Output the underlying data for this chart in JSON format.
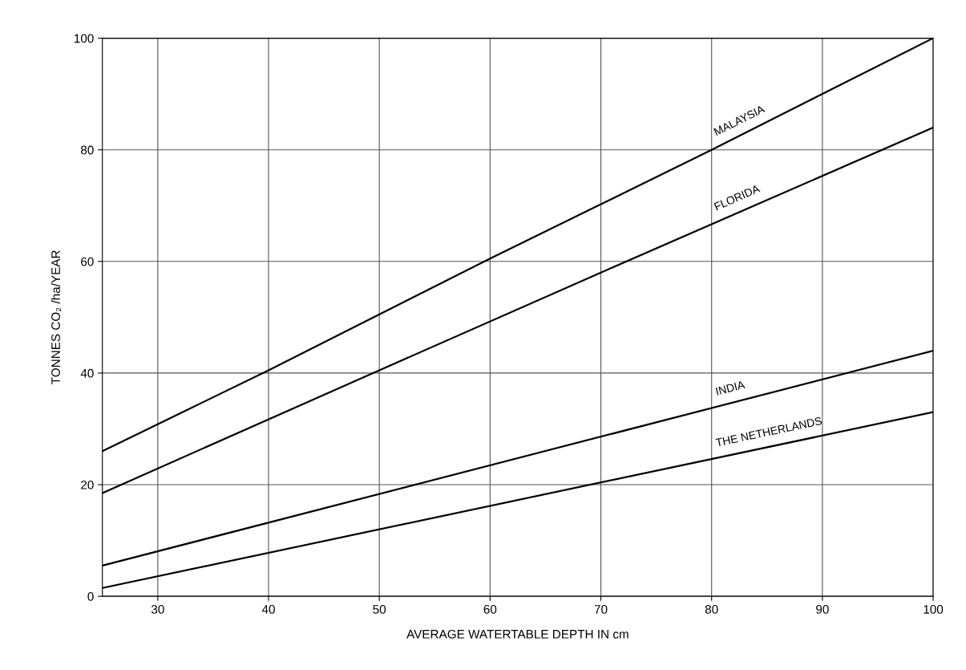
{
  "chart_data": {
    "type": "line",
    "xlabel": "AVERAGE WATERTABLE DEPTH IN cm",
    "ylabel": "TONNES CO₂ /ha/YEAR",
    "xlim": [
      25,
      100
    ],
    "xticks": [
      30,
      40,
      50,
      60,
      70,
      80,
      90,
      100
    ],
    "ylim": [
      0,
      100
    ],
    "yticks": [
      0,
      20,
      40,
      60,
      80,
      100
    ],
    "grid": true,
    "legend": false,
    "marker": "none",
    "line_style": "solid",
    "series": [
      {
        "name": "MALAYSIA",
        "color": "#000000",
        "x": [
          25,
          40,
          60,
          80,
          100
        ],
        "values": [
          26,
          40.5,
          60.5,
          80,
          100
        ]
      },
      {
        "name": "FLORIDA",
        "color": "#000000",
        "x": [
          25,
          50,
          70,
          100
        ],
        "values": [
          18.5,
          40.5,
          58,
          84
        ]
      },
      {
        "name": "INDIA",
        "color": "#000000",
        "x": [
          25,
          100
        ],
        "values": [
          5.5,
          44
        ]
      },
      {
        "name": "THE NETHERLANDS",
        "color": "#000000",
        "x": [
          25,
          100
        ],
        "values": [
          1.5,
          33
        ]
      }
    ]
  }
}
